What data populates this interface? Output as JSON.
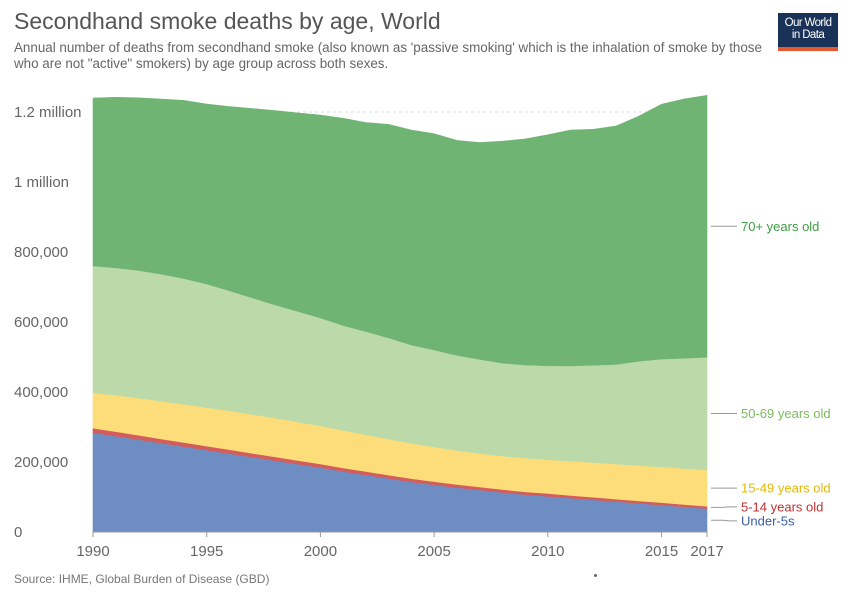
{
  "header": {
    "title": "Secondhand smoke deaths by age, World",
    "subtitle": "Annual number of deaths from secondhand smoke (also known as 'passive smoking' which is the inhalation of smoke by those who are not \"active\" smokers) by age group across both sexes."
  },
  "logo": {
    "line1": "Our World",
    "line2": "in Data",
    "bg_color": "#1a3257",
    "accent_color": "#e5592f"
  },
  "footer": {
    "source": "Source: IHME, Global Burden of Disease (GBD)"
  },
  "chart_data": {
    "type": "area",
    "stacked": true,
    "x": [
      1990,
      1991,
      1992,
      1993,
      1994,
      1995,
      1996,
      1997,
      1998,
      1999,
      2000,
      2001,
      2002,
      2003,
      2004,
      2005,
      2006,
      2007,
      2008,
      2009,
      2010,
      2011,
      2012,
      2013,
      2014,
      2015,
      2016,
      2017
    ],
    "xlim": [
      1990,
      2017
    ],
    "ylim": [
      0,
      1200000
    ],
    "x_ticks": [
      {
        "value": 1990,
        "label": "1990"
      },
      {
        "value": 1995,
        "label": "1995"
      },
      {
        "value": 2000,
        "label": "2000"
      },
      {
        "value": 2005,
        "label": "2005"
      },
      {
        "value": 2010,
        "label": "2010"
      },
      {
        "value": 2015,
        "label": "2015"
      },
      {
        "value": 2017,
        "label": "2017"
      }
    ],
    "y_ticks": [
      {
        "value": 0,
        "label": "0"
      },
      {
        "value": 200000,
        "label": "200,000"
      },
      {
        "value": 400000,
        "label": "400,000"
      },
      {
        "value": 600000,
        "label": "600,000"
      },
      {
        "value": 800000,
        "label": "800,000"
      },
      {
        "value": 1000000,
        "label": "1 million"
      },
      {
        "value": 1200000,
        "label": "1.2 million"
      }
    ],
    "grid": true,
    "legend": "right-inline",
    "series": [
      {
        "name": "Under-5s",
        "color": "#6d8dc3",
        "label_color": "#3c5da8",
        "values": [
          284000,
          274000,
          264000,
          254000,
          244000,
          234000,
          224000,
          214000,
          204000,
          194000,
          184000,
          173000,
          163000,
          153000,
          143000,
          135000,
          127000,
          120000,
          113000,
          107000,
          102000,
          97000,
          92000,
          87000,
          82000,
          77000,
          72000,
          67000
        ]
      },
      {
        "name": "5-14 years old",
        "color": "#d35d5d",
        "label_color": "#c03030",
        "values": [
          13000,
          13000,
          12500,
          12000,
          12000,
          11500,
          11500,
          11000,
          11000,
          10500,
          10500,
          10000,
          10000,
          9500,
          9500,
          9000,
          9000,
          8500,
          8500,
          8000,
          8000,
          7500,
          7500,
          7000,
          7000,
          7000,
          6500,
          6500
        ]
      },
      {
        "name": "15-49 years old",
        "color": "#fddd7a",
        "label_color": "#e5b800",
        "values": [
          101000,
          104000,
          106000,
          108000,
          109000,
          110000,
          111000,
          111000,
          111000,
          110000,
          109000,
          107000,
          105000,
          103000,
          101000,
          99000,
          97000,
          96000,
          96000,
          96000,
          97000,
          98000,
          99000,
          100000,
          101000,
          102000,
          103000,
          104000
        ]
      },
      {
        "name": "50-69 years old",
        "color": "#bcdaa9",
        "label_color": "#7dbb5e",
        "values": [
          362000,
          364000,
          365000,
          363000,
          359000,
          353000,
          343000,
          333000,
          323000,
          316000,
          308000,
          300000,
          295000,
          289000,
          281000,
          277000,
          272000,
          269000,
          265000,
          266000,
          268000,
          272000,
          278000,
          285000,
          298000,
          308000,
          315000,
          322000
        ]
      },
      {
        "name": "70+ years old",
        "color": "#70b474",
        "label_color": "#3f9d45",
        "values": [
          480000,
          487000,
          493000,
          500000,
          509000,
          514000,
          526000,
          541000,
          555000,
          567000,
          580000,
          592000,
          597000,
          610000,
          614000,
          618000,
          614000,
          619000,
          634000,
          646000,
          660000,
          674000,
          674000,
          681000,
          700000,
          728000,
          741000,
          748000
        ]
      }
    ]
  }
}
